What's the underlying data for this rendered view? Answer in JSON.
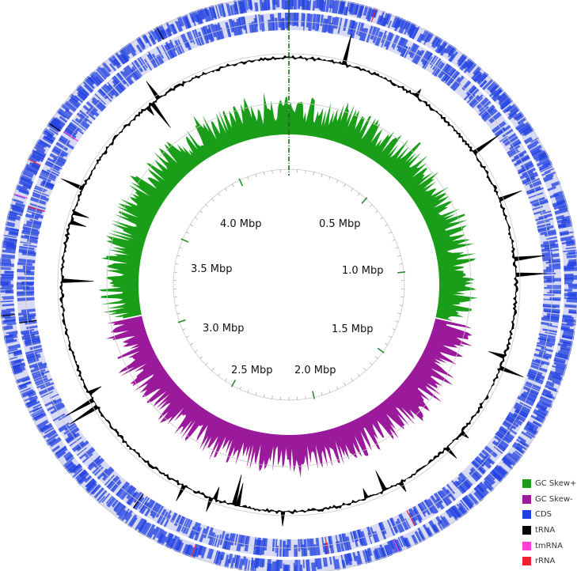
{
  "map": {
    "genome_size_mbp": 4.3,
    "tick_labels": [
      "0.5 Mbp",
      "1.0 Mbp",
      "1.5 Mbp",
      "2.0 Mbp",
      "2.5 Mbp",
      "3.0 Mbp",
      "3.5 Mbp",
      "4.0 Mbp"
    ],
    "tick_positions_mbp": [
      0.5,
      1.0,
      1.5,
      2.0,
      2.5,
      3.0,
      3.5,
      4.0
    ]
  },
  "legend": {
    "items": [
      {
        "label": "GC Skew+",
        "color": "#1a9e1a"
      },
      {
        "label": "GC Skew-",
        "color": "#9b1a9b"
      },
      {
        "label": "CDS",
        "color": "#1f3fe0"
      },
      {
        "label": "tRNA",
        "color": "#000000"
      },
      {
        "label": "tmRNA",
        "color": "#ff3fd6"
      },
      {
        "label": "rRNA",
        "color": "#ee2233"
      }
    ]
  }
}
